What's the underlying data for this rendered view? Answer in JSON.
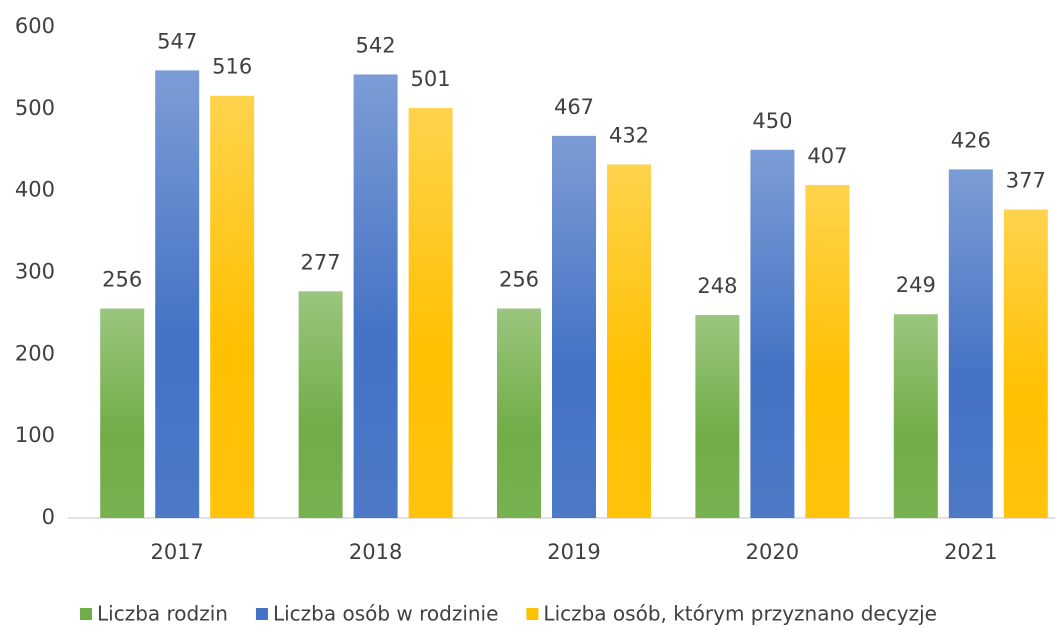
{
  "chart_data": {
    "type": "bar",
    "categories": [
      "2017",
      "2018",
      "2019",
      "2020",
      "2021"
    ],
    "series": [
      {
        "name": "Liczba rodzin",
        "color": "#70ad47",
        "values": [
          256,
          277,
          256,
          248,
          249
        ]
      },
      {
        "name": "Liczba osób w rodzinie",
        "color": "#4472c4",
        "values": [
          547,
          542,
          467,
          450,
          426
        ]
      },
      {
        "name": "Liczba osób, którym przyznano decyzje",
        "color": "#ffc000",
        "values": [
          516,
          501,
          432,
          407,
          377
        ]
      }
    ],
    "ylim": [
      0,
      600
    ],
    "yticks": [
      0,
      100,
      200,
      300,
      400,
      500,
      600
    ],
    "grid": false,
    "legend": "bottom"
  }
}
